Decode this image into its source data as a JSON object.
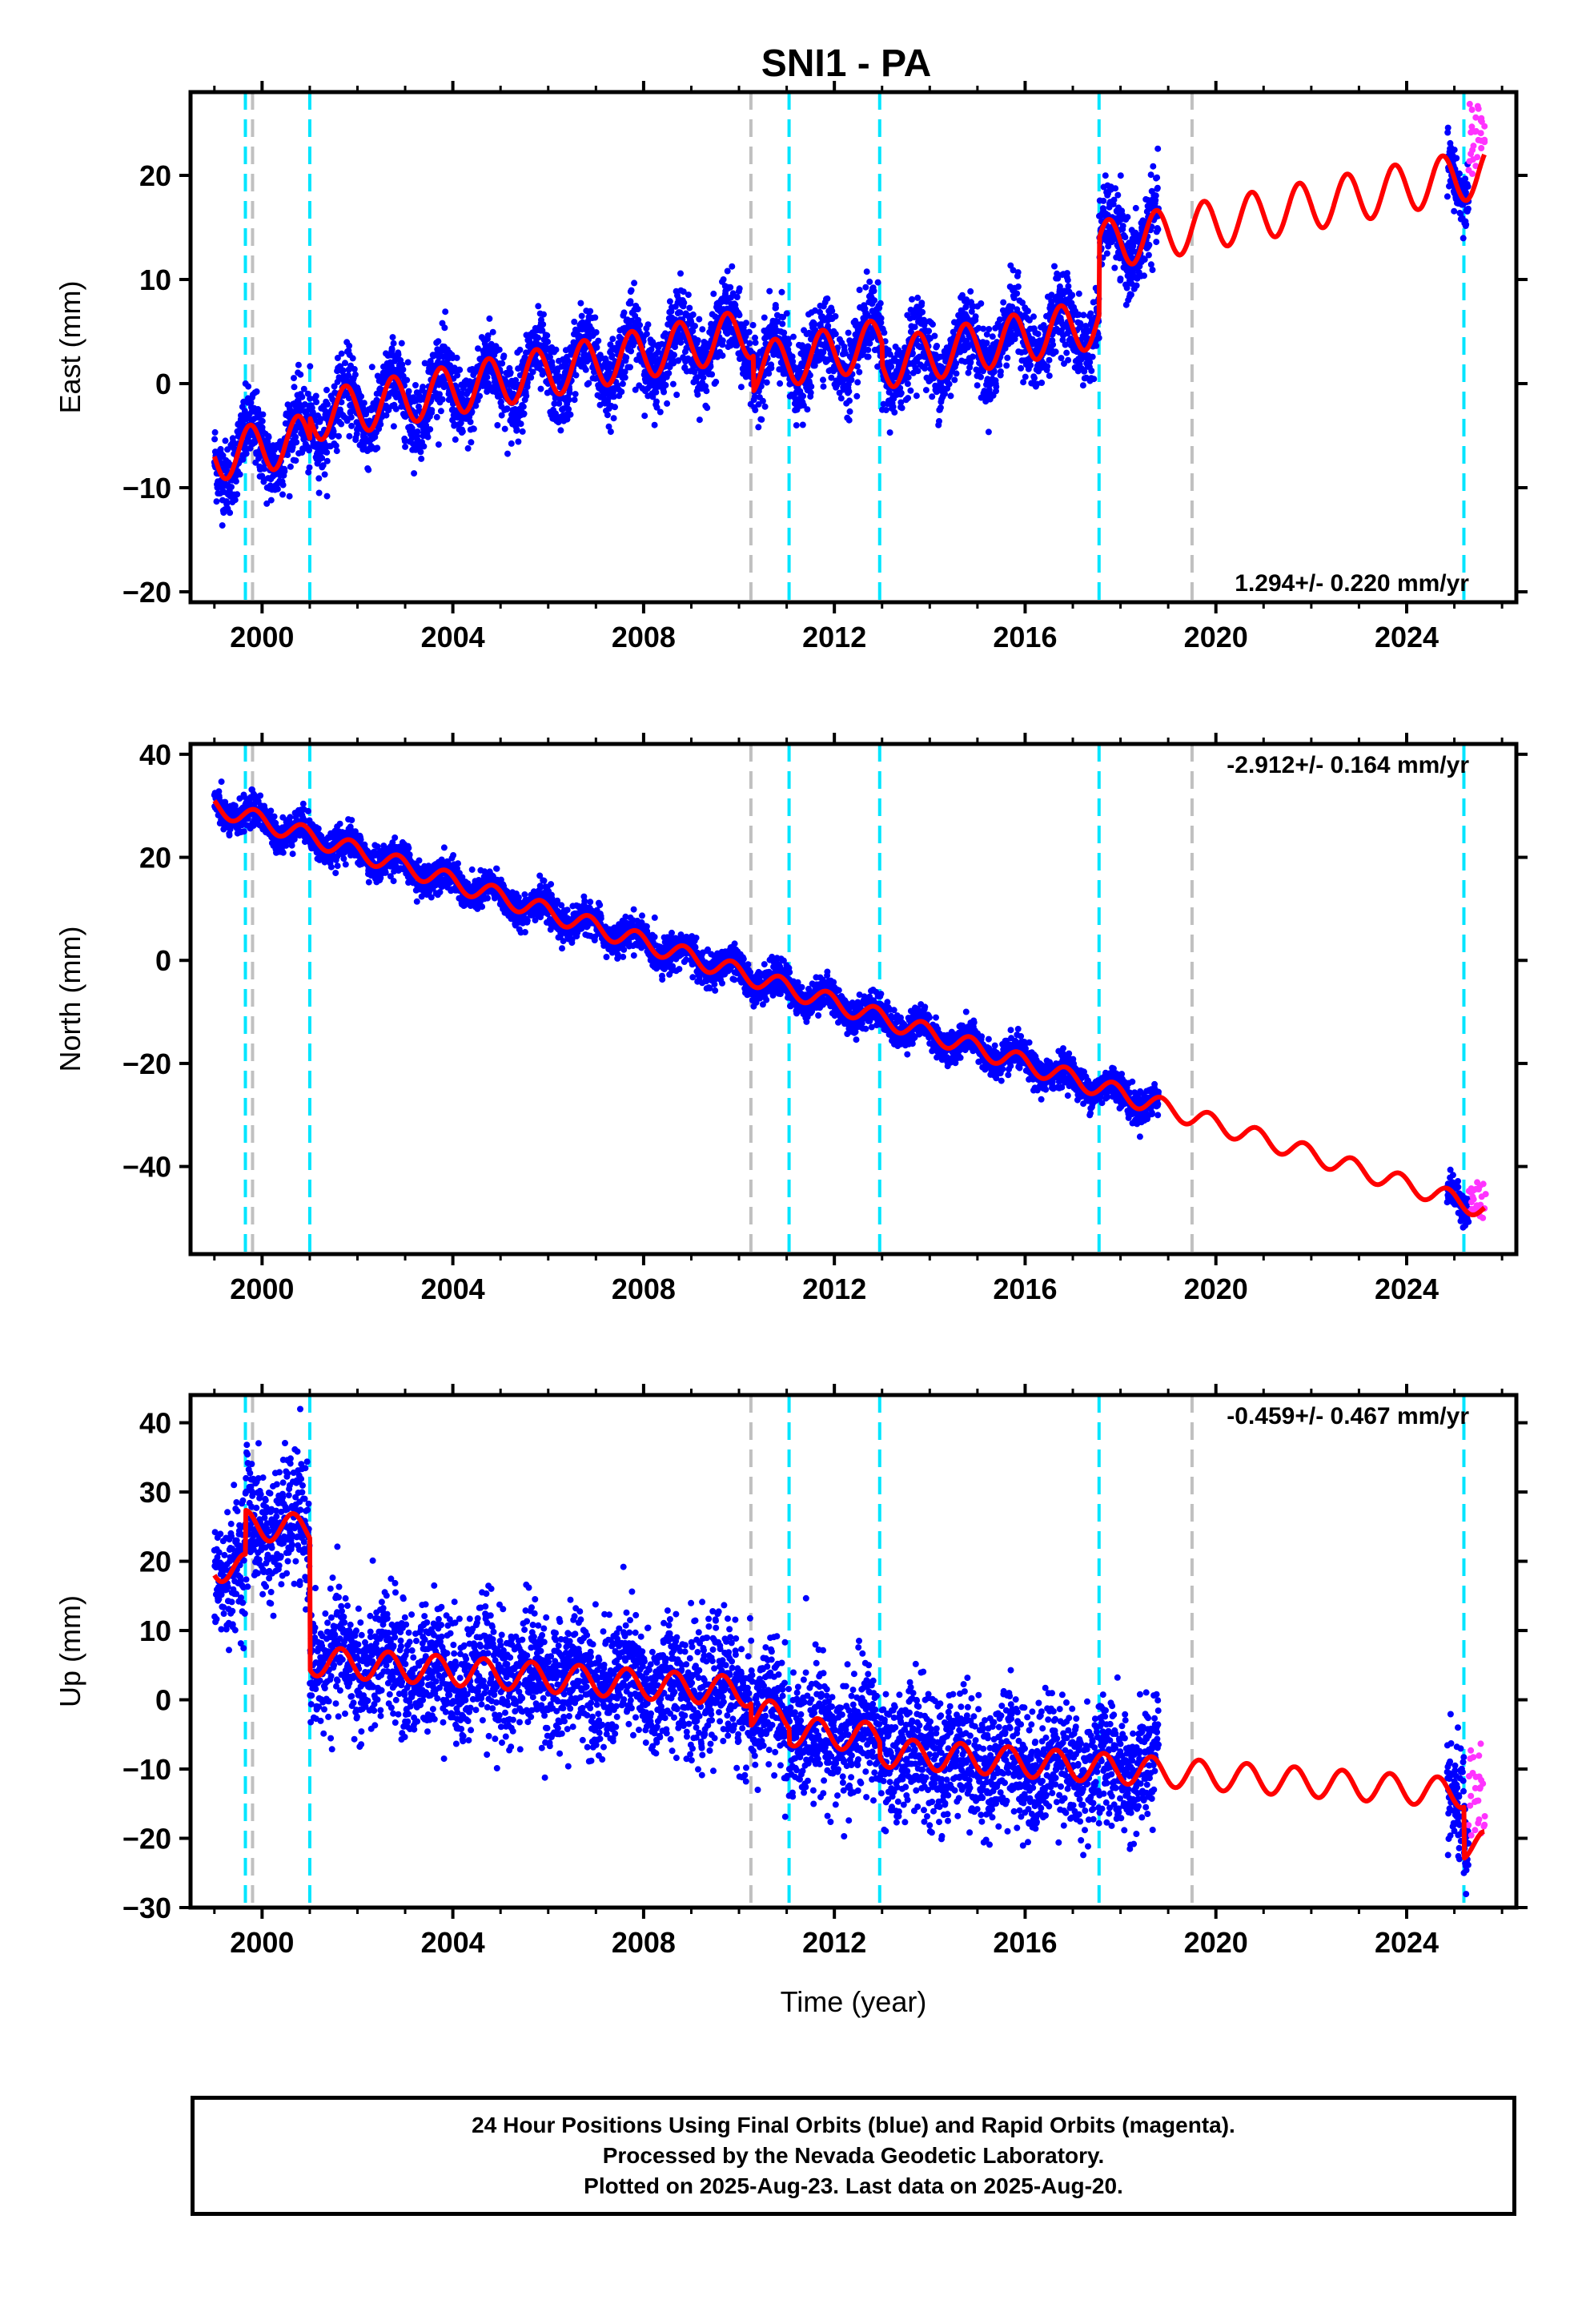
{
  "title": "SNI1 - PA",
  "xlabel": "Time (year)",
  "footer": {
    "line1": "24 Hour Positions Using Final Orbits (blue) and Rapid Orbits (magenta).",
    "line2": "Processed by the Nevada Geodetic Laboratory.",
    "line3": "Plotted on 2025-Aug-23. Last data on 2025-Aug-20."
  },
  "colors": {
    "final": "#0000ff",
    "rapid": "#ff33ff",
    "model": "#ff0000",
    "equipment_change": "#00e5ff",
    "earthquake": "#c0c0c0"
  },
  "chart_data": [
    {
      "type": "scatter",
      "component": "east",
      "ylabel": "East (mm)",
      "rate_label": "1.294+/- 0.220 mm/yr",
      "xlim": [
        1998.5,
        2026.3
      ],
      "ylim": [
        -21,
        28
      ],
      "xticks": [
        2000,
        2004,
        2008,
        2012,
        2016,
        2020,
        2024
      ],
      "yticks": [
        -20,
        -10,
        0,
        10,
        20
      ],
      "model": {
        "rate": 1.294,
        "ref_year": 2012,
        "offset": -4.2,
        "amp": 3.5,
        "phase": 0.5,
        "jumps": [
          [
            2001.0,
            3.0
          ],
          [
            2010.3,
            -5.0
          ],
          [
            2013.0,
            -3.0
          ],
          [
            2017.55,
            11.0
          ]
        ],
        "y_start": -7,
        "y_end": 22
      },
      "final_series": {
        "start": 1999.0,
        "end": 2018.8,
        "noise": 1.8
      },
      "rapid_series": {
        "start": 2025.3,
        "end": 2025.63,
        "y_range": [
          20,
          27
        ]
      },
      "equipment_changes": [
        1999.65,
        2001.0,
        2011.05,
        2012.95,
        2017.55,
        2025.2
      ],
      "earthquakes": [
        1999.8,
        2010.25,
        2019.5
      ]
    },
    {
      "type": "scatter",
      "component": "north",
      "ylabel": "North (mm)",
      "rate_label": "-2.912+/- 0.164 mm/yr",
      "xlim": [
        1998.5,
        2026.3
      ],
      "ylim": [
        -57,
        42
      ],
      "xticks": [
        2000,
        2004,
        2008,
        2012,
        2016,
        2020,
        2024
      ],
      "yticks": [
        -40,
        -20,
        0,
        20,
        40
      ],
      "model": {
        "rate": -2.912,
        "ref_year": 2012,
        "offset": -15.5,
        "amp": 1.8,
        "phase": 0.6,
        "jumps": [],
        "y_start": 31,
        "y_end": -48
      },
      "final_series": {
        "start": 1999.0,
        "end": 2018.8,
        "noise": 1.6
      },
      "rapid_series": {
        "start": 2025.3,
        "end": 2025.63,
        "y_range": [
          -50,
          -43
        ]
      },
      "equipment_changes": [
        1999.65,
        2001.0,
        2011.05,
        2012.95,
        2017.55,
        2025.2
      ],
      "earthquakes": [
        1999.8,
        2010.25,
        2019.5
      ]
    },
    {
      "type": "scatter",
      "component": "up",
      "ylabel": "Up (mm)",
      "rate_label": "-0.459+/- 0.467 mm/yr",
      "xlim": [
        1998.5,
        2026.3
      ],
      "ylim": [
        -30,
        44
      ],
      "xticks": [
        2000,
        2004,
        2008,
        2012,
        2016,
        2020,
        2024
      ],
      "yticks": [
        -30,
        -20,
        -10,
        0,
        10,
        20,
        30,
        40
      ],
      "model": {
        "rate": -0.459,
        "ref_year": 2012,
        "offset": -2.5,
        "amp": 2.0,
        "phase": 0.4,
        "jumps": [
          [
            1999.65,
            6.0
          ],
          [
            2001.0,
            -18.0
          ],
          [
            2010.25,
            -3.0
          ],
          [
            2011.05,
            -2.0
          ],
          [
            2012.95,
            -2.0
          ],
          [
            2025.2,
            -7.0
          ]
        ],
        "y_start": 18,
        "y_end": -19
      },
      "final_series": {
        "start": 1999.0,
        "end": 2018.8,
        "noise": 4.5
      },
      "rapid_series": {
        "start": 2025.3,
        "end": 2025.63,
        "y_range": [
          -20,
          -5
        ]
      },
      "equipment_changes": [
        1999.65,
        2001.0,
        2011.05,
        2012.95,
        2017.55,
        2025.2
      ],
      "earthquakes": [
        1999.8,
        2010.25,
        2019.5
      ]
    }
  ]
}
